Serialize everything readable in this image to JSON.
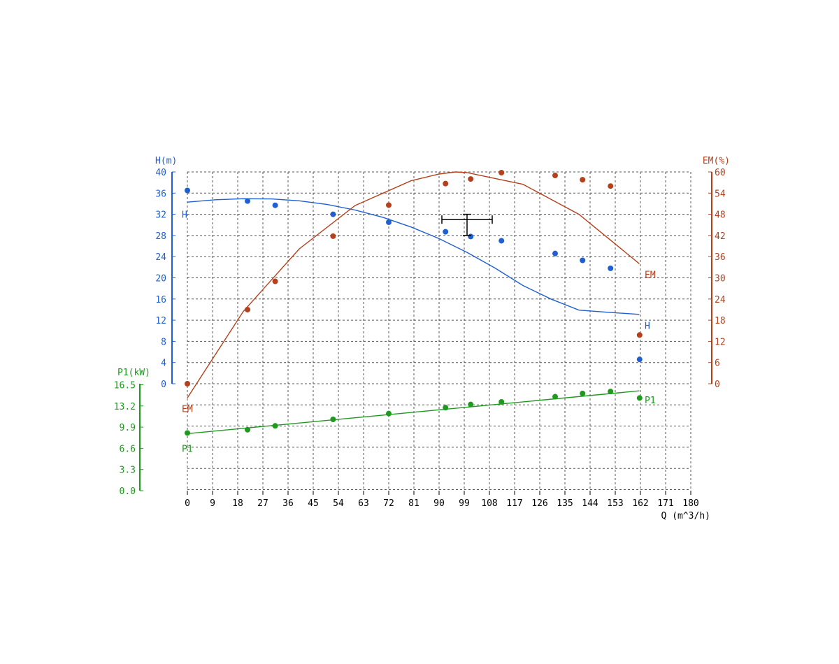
{
  "chart_data": {
    "type": "scatter",
    "x_axis": {
      "label": "Q (m^3/h)",
      "range": [
        0,
        180
      ],
      "ticks": [
        0,
        9,
        18,
        27,
        36,
        45,
        54,
        63,
        72,
        81,
        90,
        99,
        108,
        117,
        126,
        135,
        144,
        153,
        162,
        171,
        180
      ]
    },
    "axes": {
      "H": {
        "label": "H(m)",
        "range": [
          0,
          40
        ],
        "ticks": [
          "0",
          "4",
          "8",
          "12",
          "16",
          "20",
          "24",
          "28",
          "32",
          "36",
          "40"
        ],
        "color": "#1f5fd1"
      },
      "EM": {
        "label": "EM(%)",
        "range": [
          0,
          60
        ],
        "ticks": [
          "0",
          "6",
          "12",
          "18",
          "24",
          "30",
          "36",
          "42",
          "48",
          "54",
          "60"
        ],
        "color": "#b5401c"
      },
      "P1": {
        "label": "P1(kW)",
        "range": [
          0,
          16.5
        ],
        "ticks": [
          "0.0",
          "3.3",
          "6.6",
          "9.9",
          "13.2",
          "16.5"
        ],
        "color": "#1f9a1f"
      }
    },
    "series": [
      {
        "name": "H",
        "axis": "H",
        "color": "#1f5fd1",
        "points": [
          [
            0,
            36.5
          ],
          [
            21.5,
            34.5
          ],
          [
            31.4,
            33.7
          ],
          [
            52.1,
            32.0
          ],
          [
            72.0,
            30.5
          ],
          [
            92.3,
            28.7
          ],
          [
            101.3,
            27.8
          ],
          [
            112.3,
            27.0
          ],
          [
            131.5,
            24.6
          ],
          [
            141.3,
            23.3
          ],
          [
            151.3,
            21.8
          ],
          [
            161.7,
            4.6
          ]
        ],
        "fit": [
          [
            0,
            34.3
          ],
          [
            10,
            34.75
          ],
          [
            20,
            34.95
          ],
          [
            30,
            34.9
          ],
          [
            40,
            34.55
          ],
          [
            50,
            33.85
          ],
          [
            60,
            32.8
          ],
          [
            70,
            31.4
          ],
          [
            80,
            29.6
          ],
          [
            90,
            27.4
          ],
          [
            100,
            24.8
          ],
          [
            110,
            21.85
          ],
          [
            120,
            18.55
          ],
          [
            130,
            16.0
          ],
          [
            140,
            13.9
          ],
          [
            150,
            13.5
          ],
          [
            161.6,
            13.1
          ]
        ],
        "labels": [
          {
            "text": "H",
            "x": 0,
            "y": 32,
            "pos": "start"
          },
          {
            "text": "H",
            "x": 162,
            "y": 11,
            "pos": "end"
          }
        ]
      },
      {
        "name": "EM",
        "axis": "EM",
        "color": "#b5401c",
        "points": [
          [
            0,
            0
          ],
          [
            21.5,
            21.0
          ],
          [
            31.4,
            29.0
          ],
          [
            52.1,
            41.8
          ],
          [
            72.0,
            50.6
          ],
          [
            92.3,
            56.7
          ],
          [
            101.3,
            58.0
          ],
          [
            112.3,
            59.8
          ],
          [
            131.5,
            59.0
          ],
          [
            141.3,
            57.8
          ],
          [
            151.3,
            56.0
          ],
          [
            161.7,
            13.8
          ]
        ],
        "fit": [
          [
            0,
            -4.0
          ],
          [
            20,
            20.5
          ],
          [
            40,
            38.2
          ],
          [
            60,
            50.5
          ],
          [
            80,
            57.5
          ],
          [
            90,
            59.4
          ],
          [
            96,
            60.0
          ],
          [
            100,
            59.8
          ],
          [
            120,
            56.5
          ],
          [
            140,
            48.0
          ],
          [
            161.6,
            34.0
          ]
        ],
        "labels": [
          {
            "text": "EM",
            "x": 0,
            "y": -7,
            "pos": "start"
          },
          {
            "text": "EM",
            "x": 162,
            "y": 31,
            "pos": "end"
          }
        ]
      },
      {
        "name": "P1",
        "axis": "P1",
        "color": "#1f9a1f",
        "points": [
          [
            0,
            8.9
          ],
          [
            21.5,
            9.4
          ],
          [
            31.4,
            10.0
          ],
          [
            52.1,
            11.0
          ],
          [
            72.0,
            11.9
          ],
          [
            92.3,
            12.8
          ],
          [
            101.3,
            13.3
          ],
          [
            112.3,
            13.7
          ],
          [
            131.5,
            14.5
          ],
          [
            141.3,
            15.0
          ],
          [
            151.3,
            15.3
          ],
          [
            161.7,
            14.3
          ]
        ],
        "fit": [
          [
            0,
            8.8
          ],
          [
            161.6,
            15.4
          ]
        ],
        "labels": [
          {
            "text": "P1",
            "x": 0,
            "y": 6.5,
            "pos": "start"
          },
          {
            "text": "P1",
            "x": 162,
            "y": 14.0,
            "pos": "end"
          }
        ]
      }
    ],
    "operating_point": {
      "Q": 100,
      "H": 31.0,
      "Q_range": [
        91,
        109
      ],
      "H_range": [
        28,
        32
      ]
    },
    "grid": true
  }
}
